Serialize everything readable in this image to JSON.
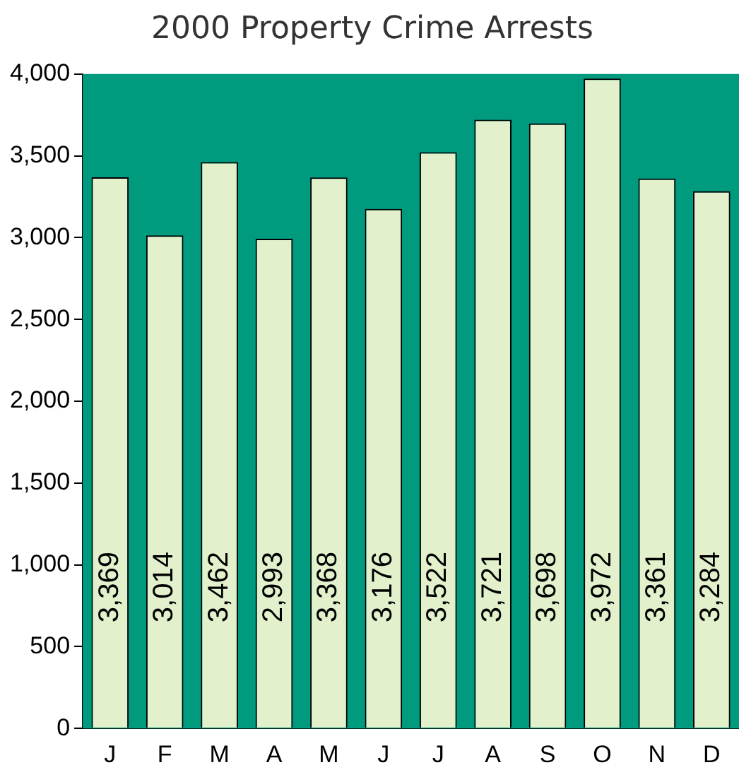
{
  "chart_data": {
    "type": "bar",
    "title": "2000 Property Crime Arrests",
    "categories": [
      "J",
      "F",
      "M",
      "A",
      "M",
      "J",
      "J",
      "A",
      "S",
      "O",
      "N",
      "D"
    ],
    "values": [
      3369,
      3014,
      3462,
      2993,
      3368,
      3176,
      3522,
      3721,
      3698,
      3972,
      3361,
      3284
    ],
    "value_labels": [
      "3,369",
      "3,014",
      "3,462",
      "2,993",
      "3,368",
      "3,176",
      "3,522",
      "3,721",
      "3,698",
      "3,972",
      "3,361",
      "3,284"
    ],
    "color": "#e2f1cc",
    "ylim": [
      0,
      4000
    ],
    "yticks": [
      0,
      500,
      {
        "value": 1000,
        "label": "1,000"
      },
      {
        "value": 1500,
        "label": "1,500"
      },
      {
        "value": 2000,
        "label": "2,000"
      },
      {
        "value": 2500,
        "label": "2,500"
      },
      {
        "value": 3000,
        "label": "3,000"
      },
      {
        "value": 3500,
        "label": "3,500"
      },
      {
        "value": 4000,
        "label": "4,000"
      }
    ],
    "bands": [
      {
        "axis": "y",
        "from": 0,
        "to": 4000,
        "color": "#009a7f"
      }
    ],
    "grid": false,
    "legend": false
  }
}
